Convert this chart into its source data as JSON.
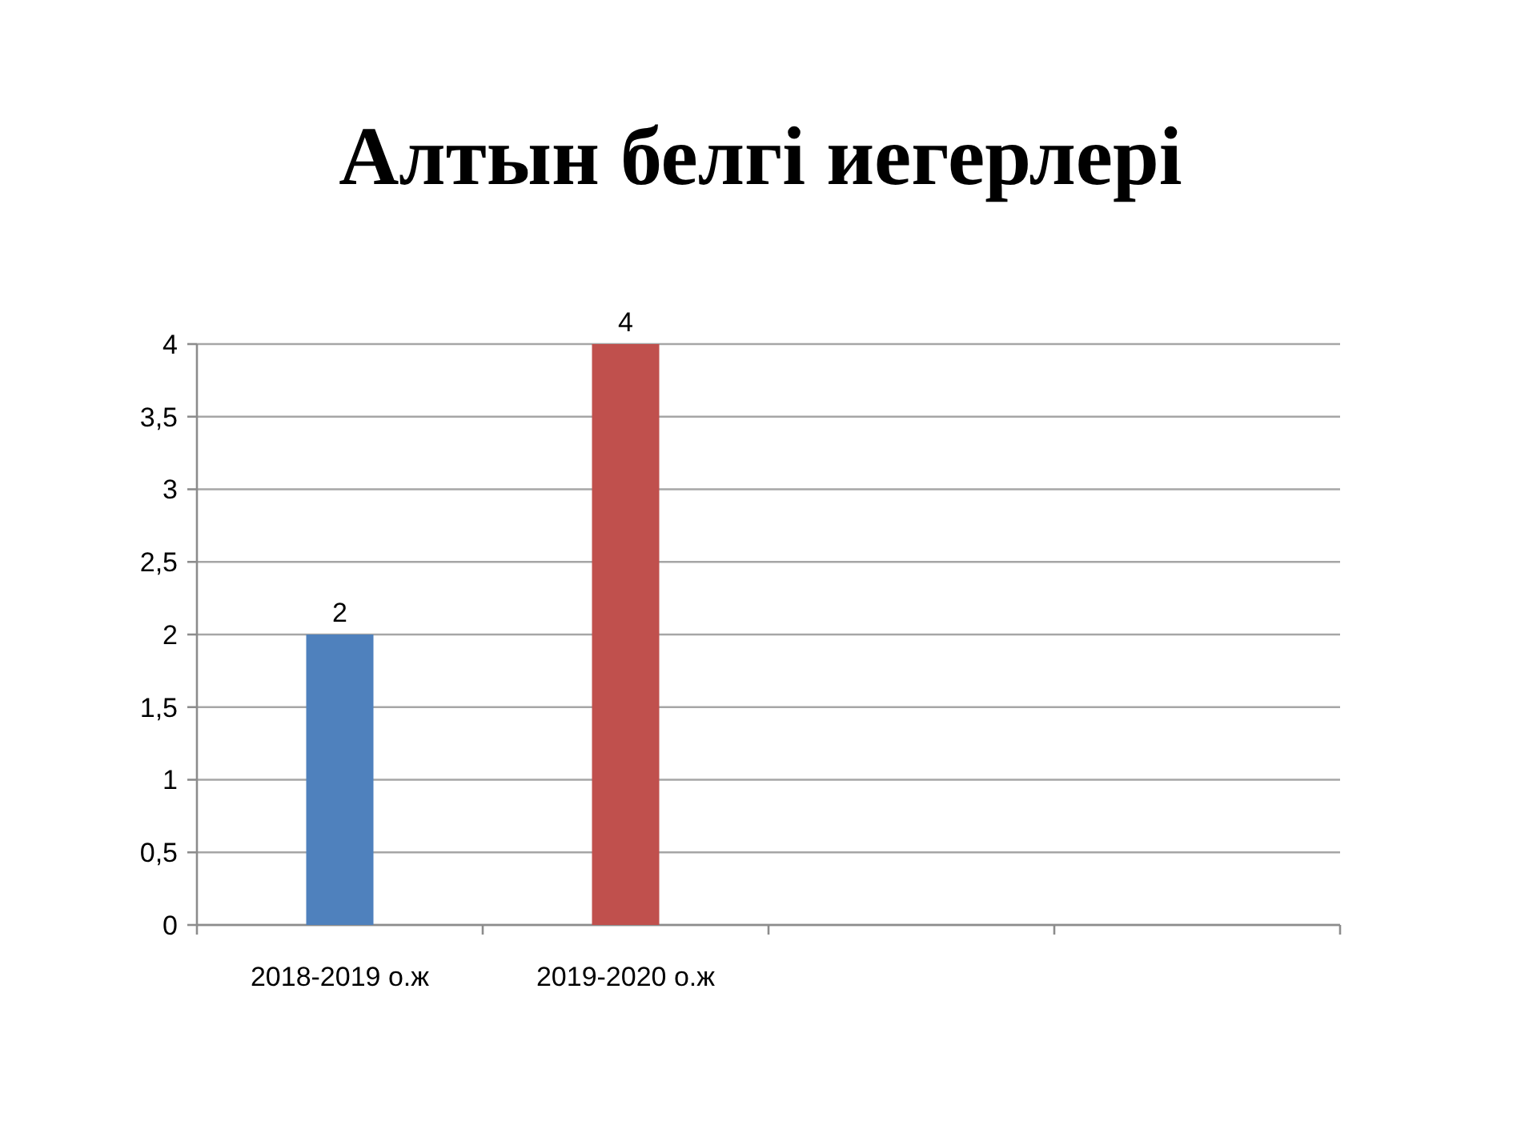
{
  "chart_data": {
    "type": "bar",
    "title": "Алтын белгі иегерлері",
    "categories": [
      "2018-2019 о.ж",
      "2019-2020 о.ж",
      null,
      null
    ],
    "values": [
      2,
      4,
      null,
      null
    ],
    "colors": [
      "#4f81bd",
      "#c0504d",
      null,
      null
    ],
    "ylim": [
      0,
      4
    ],
    "yticks": [
      0,
      {
        "value": 0.5,
        "label": "0,5"
      },
      1,
      {
        "value": 1.5,
        "label": "1,5"
      },
      2,
      {
        "value": 2.5,
        "label": "2,5"
      },
      3,
      {
        "value": 3.5,
        "label": "3,5"
      },
      4
    ],
    "grid": "y",
    "data_labels": true
  }
}
